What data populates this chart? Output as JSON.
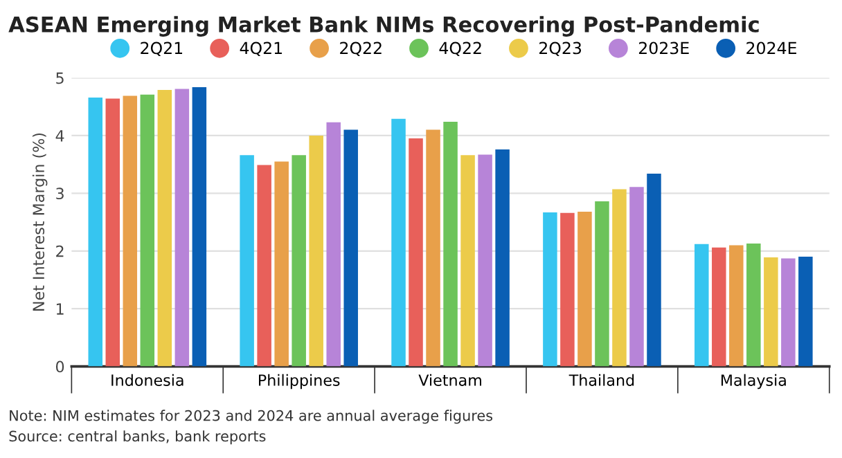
{
  "chart_data": {
    "type": "bar",
    "title": "ASEAN Emerging Market Bank NIMs Recovering Post-Pandemic",
    "ylabel": "Net Interest Margin (%)",
    "categories": [
      "Indonesia",
      "Philippines",
      "Vietnam",
      "Thailand",
      "Malaysia"
    ],
    "series": [
      {
        "name": "2Q21",
        "color": "#36c5f0",
        "values": [
          4.66,
          3.66,
          4.29,
          2.67,
          2.12
        ]
      },
      {
        "name": "4Q21",
        "color": "#e8605a",
        "values": [
          4.64,
          3.49,
          3.95,
          2.66,
          2.06
        ]
      },
      {
        "name": "2Q22",
        "color": "#e8a04a",
        "values": [
          4.69,
          3.55,
          4.1,
          2.68,
          2.1
        ]
      },
      {
        "name": "4Q22",
        "color": "#6cc35a",
        "values": [
          4.71,
          3.66,
          4.24,
          2.86,
          2.13
        ]
      },
      {
        "name": "2Q23",
        "color": "#eccb4a",
        "values": [
          4.79,
          4.0,
          3.66,
          3.07,
          1.89
        ]
      },
      {
        "name": "2023E",
        "color": "#b784d8",
        "values": [
          4.81,
          4.23,
          3.67,
          3.11,
          1.87
        ]
      },
      {
        "name": "2024E",
        "color": "#0a5fb4",
        "values": [
          4.84,
          4.1,
          3.76,
          3.34,
          1.9
        ]
      }
    ],
    "ylim": [
      0,
      5
    ],
    "yticks": [
      0,
      1,
      2,
      3,
      4,
      5
    ],
    "grid": "y",
    "legend": "top",
    "annotations": [
      "Note: NIM estimates for 2023 and 2024 are annual average figures",
      "Source: central banks, bank reports"
    ]
  }
}
